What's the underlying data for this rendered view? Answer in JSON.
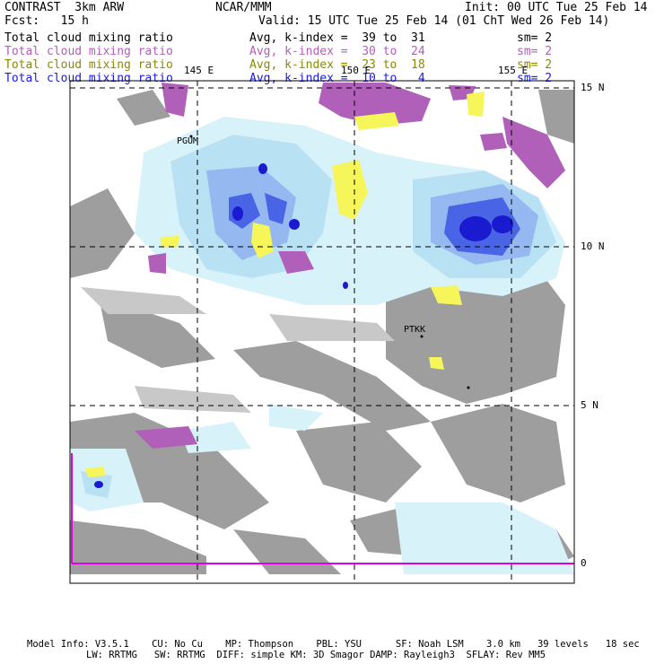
{
  "header": {
    "title": "CONTRAST  3km ARW",
    "center": "NCAR/MMM",
    "init": "Init: 00 UTC Tue 25 Feb 14",
    "fcst": "Fcst:   15 h",
    "valid": "Valid: 15 UTC Tue 25 Feb 14 (01 ChT Wed 26 Feb 14)"
  },
  "legend": [
    {
      "field": "Total cloud mixing ratio",
      "range": "Avg, k-index =  39 to  31",
      "smooth": "sm= 2",
      "color": "#000000"
    },
    {
      "field": "Total cloud mixing ratio",
      "range": "Avg, k-index =  30 to  24",
      "smooth": "sm= 2",
      "color": "#b060b8"
    },
    {
      "field": "Total cloud mixing ratio",
      "range": "Avg, k-index =  23 to  18",
      "smooth": "sm= 2",
      "color": "#8a8a00"
    },
    {
      "field": "Total cloud mixing ratio",
      "range": "Avg, k-index =  10 to   4",
      "smooth": "sm= 2",
      "color": "#1a1ae6"
    }
  ],
  "map": {
    "lon_labels": [
      "145 E",
      "150 E",
      "155 E"
    ],
    "lat_labels": [
      "15 N",
      "10 N",
      "5 N",
      "0"
    ],
    "stations": [
      "PGUM",
      "PTKK"
    ]
  },
  "footer": {
    "line1": "Model Info: V3.5.1    CU: No Cu    MP: Thompson    PBL: YSU      SF: Noah LSM    3.0 km   39 levels   18 sec",
    "line2": "LW: RRTMG   SW: RRTMG  DIFF: simple KM: 3D Smagor DAMP: Rayleigh3  SFLAY: Rev MM5"
  },
  "colors": {
    "gray": "#9e9e9e",
    "light_gray": "#c8c8c8",
    "pale_cyan": "#d8f2fa",
    "light_blue": "#b8e2f4",
    "mid_blue": "#94b8ef",
    "blue": "#4a64e6",
    "deep_blue": "#1a1ad0",
    "purple": "#b060b8",
    "yellow": "#f6f65a",
    "magenta": "#e000e0"
  }
}
